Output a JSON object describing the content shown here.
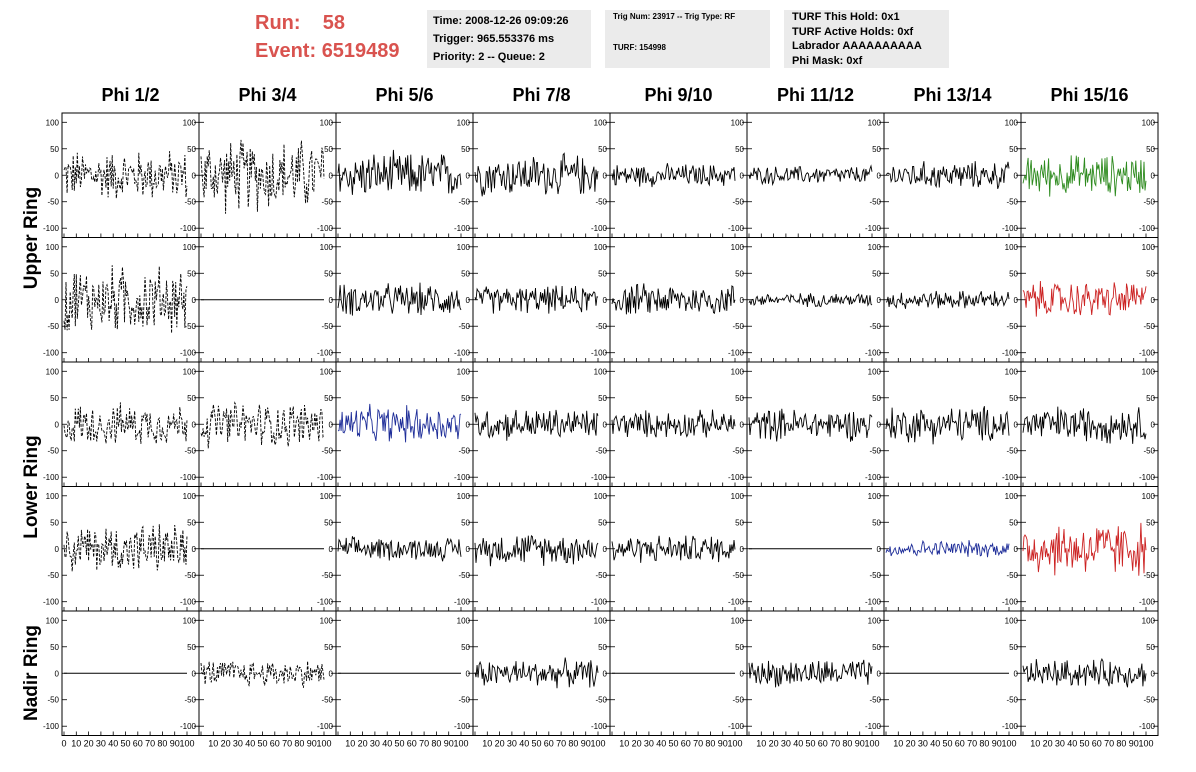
{
  "header": {
    "run_label": "Run:",
    "run_value": "58",
    "event_label": "Event:",
    "event_value": "6519489",
    "time_box": [
      "Time: 2008-12-26 09:09:26",
      "Trigger: 965.553376 ms",
      "Priority: 2 -- Queue: 2"
    ],
    "trig_box": [
      "Trig Num: 23917 -- Trig Type: RF",
      "TURF: 154998"
    ],
    "turf_box": [
      "TURF This Hold: 0x1",
      "TURF Active Holds: 0xf",
      "Labrador AAAAAAAAAA",
      "Phi Mask: 0xf"
    ]
  },
  "columns": [
    "Phi 1/2",
    "Phi 3/4",
    "Phi 5/6",
    "Phi 7/8",
    "Phi 9/10",
    "Phi 11/12",
    "Phi 13/14",
    "Phi 15/16"
  ],
  "row_labels": [
    {
      "text": "Upper Ring",
      "span": [
        0,
        1
      ]
    },
    {
      "text": "Lower Ring",
      "span": [
        2,
        3
      ]
    },
    {
      "text": "Nadir Ring",
      "span": [
        4,
        4
      ]
    }
  ],
  "chart_data": {
    "type": "line",
    "xlim": [
      0,
      100
    ],
    "ylim": [
      -110,
      110
    ],
    "yticks": [
      -100,
      -50,
      0,
      50,
      100
    ],
    "xticks_labels": [
      "0",
      "10",
      "20",
      "30",
      "40",
      "50",
      "60",
      "70",
      "80",
      "90",
      "100"
    ],
    "panel_note": "Each panel shows a noise waveform; amplitude is the approximate peak (mV), style/color as drawn",
    "panels": [
      [
        {
          "amp": 55,
          "style": "dashed",
          "color": "#000000"
        },
        {
          "amp": 80,
          "style": "dashed",
          "color": "#000000"
        },
        {
          "amp": 50,
          "style": "solid",
          "color": "#000000"
        },
        {
          "amp": 45,
          "style": "solid",
          "color": "#000000"
        },
        {
          "amp": 25,
          "style": "solid",
          "color": "#000000"
        },
        {
          "amp": 20,
          "style": "solid",
          "color": "#000000"
        },
        {
          "amp": 30,
          "style": "solid",
          "color": "#000000"
        },
        {
          "amp": 45,
          "style": "solid",
          "color": "#2e8b1f"
        }
      ],
      [
        {
          "amp": 75,
          "style": "dashed",
          "color": "#000000"
        },
        {
          "amp": 0,
          "style": "solid",
          "color": "#000000"
        },
        {
          "amp": 35,
          "style": "solid",
          "color": "#000000"
        },
        {
          "amp": 30,
          "style": "solid",
          "color": "#000000"
        },
        {
          "amp": 35,
          "style": "solid",
          "color": "#000000"
        },
        {
          "amp": 15,
          "style": "solid",
          "color": "#000000"
        },
        {
          "amp": 20,
          "style": "solid",
          "color": "#000000"
        },
        {
          "amp": 40,
          "style": "solid",
          "color": "#cc2222"
        }
      ],
      [
        {
          "amp": 45,
          "style": "dashed",
          "color": "#000000"
        },
        {
          "amp": 50,
          "style": "dashed",
          "color": "#000000"
        },
        {
          "amp": 40,
          "style": "solid",
          "color": "#1f2e99"
        },
        {
          "amp": 35,
          "style": "solid",
          "color": "#000000"
        },
        {
          "amp": 30,
          "style": "solid",
          "color": "#000000"
        },
        {
          "amp": 35,
          "style": "solid",
          "color": "#000000"
        },
        {
          "amp": 40,
          "style": "solid",
          "color": "#000000"
        },
        {
          "amp": 40,
          "style": "solid",
          "color": "#000000"
        }
      ],
      [
        {
          "amp": 55,
          "style": "dashed",
          "color": "#000000"
        },
        {
          "amp": 0,
          "style": "solid",
          "color": "#000000"
        },
        {
          "amp": 25,
          "style": "solid",
          "color": "#000000"
        },
        {
          "amp": 35,
          "style": "solid",
          "color": "#000000"
        },
        {
          "amp": 30,
          "style": "solid",
          "color": "#000000"
        },
        {
          "amp": 0,
          "style": "solid",
          "color": "#000000"
        },
        {
          "amp": 18,
          "style": "solid",
          "color": "#1f2e99"
        },
        {
          "amp": 60,
          "style": "solid",
          "color": "#cc2222"
        }
      ],
      [
        {
          "amp": 0,
          "style": "solid",
          "color": "#000000"
        },
        {
          "amp": 30,
          "style": "dashed",
          "color": "#000000"
        },
        {
          "amp": 0,
          "style": "solid",
          "color": "#000000"
        },
        {
          "amp": 30,
          "style": "solid",
          "color": "#000000"
        },
        {
          "amp": 0,
          "style": "solid",
          "color": "#000000"
        },
        {
          "amp": 30,
          "style": "solid",
          "color": "#000000"
        },
        {
          "amp": 0,
          "style": "solid",
          "color": "#000000"
        },
        {
          "amp": 30,
          "style": "solid",
          "color": "#000000"
        }
      ]
    ]
  }
}
